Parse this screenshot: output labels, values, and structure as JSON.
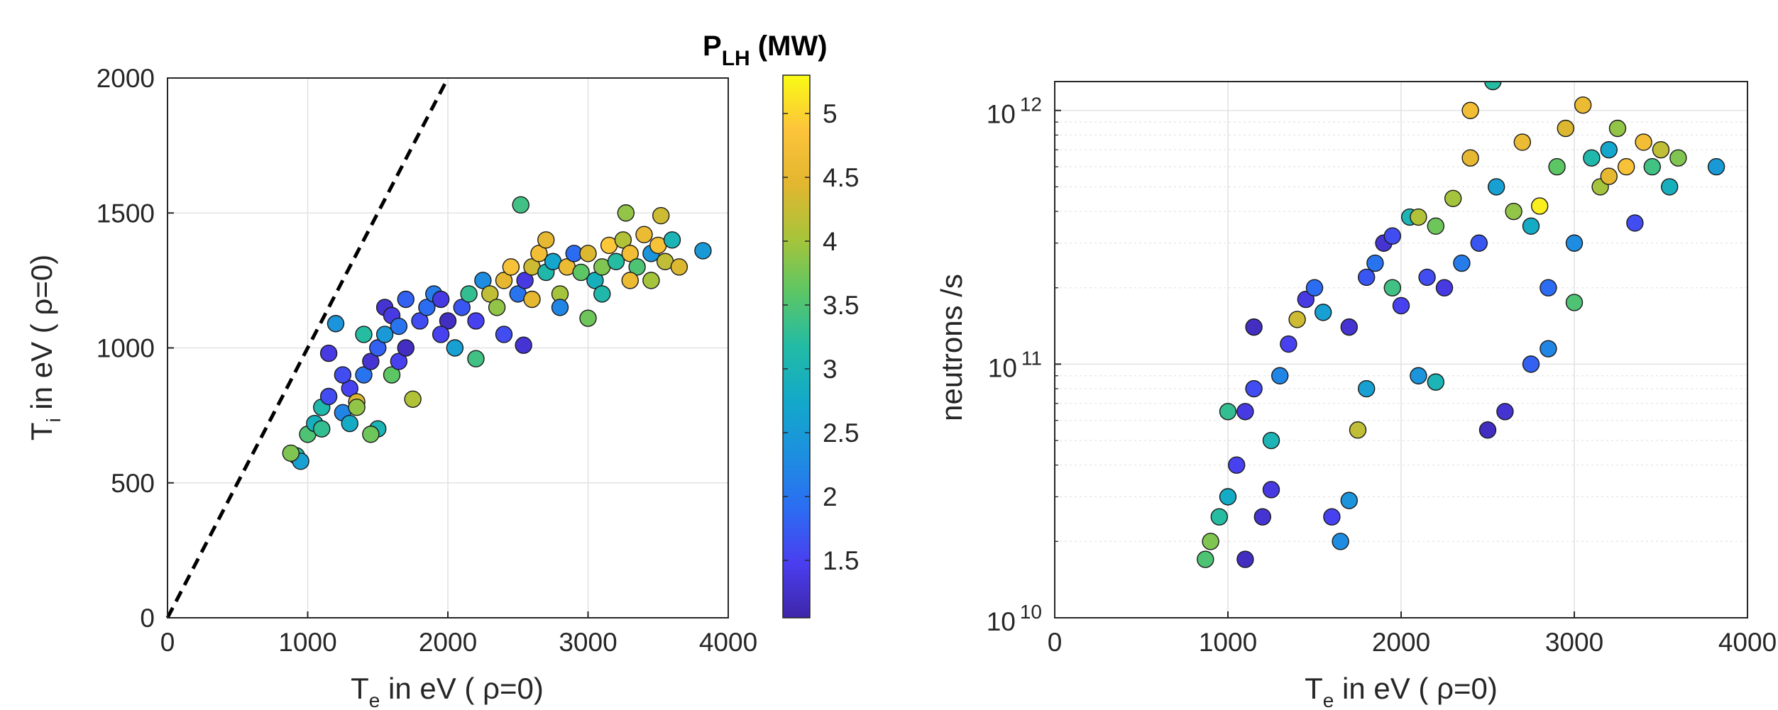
{
  "chart_data": [
    {
      "type": "scatter",
      "xlabel": {
        "main": "T",
        "sub": "e",
        "rest": " in eV (  ρ=0)"
      },
      "ylabel": {
        "main": "T",
        "sub": "i",
        "rest": " in eV (  ρ=0)"
      },
      "xlim": [
        0,
        4000
      ],
      "ylim": [
        0,
        2000
      ],
      "x_ticks": [
        "0",
        "1000",
        "2000",
        "3000",
        "4000"
      ],
      "y_ticks": [
        "0",
        "500",
        "1000",
        "1500",
        "2000"
      ],
      "grid": true,
      "reference_line": {
        "style": "dashed",
        "color": "#000000",
        "from": [
          0,
          0
        ],
        "to": [
          2000,
          2000
        ]
      },
      "color_variable": "P_LH (MW)",
      "points": [
        [
          920,
          600,
          3.2
        ],
        [
          950,
          580,
          2.6
        ],
        [
          880,
          610,
          3.8
        ],
        [
          1000,
          680,
          3.5
        ],
        [
          1050,
          720,
          2.9
        ],
        [
          1100,
          780,
          3.1
        ],
        [
          1150,
          820,
          1.6
        ],
        [
          1200,
          1090,
          2.4
        ],
        [
          1150,
          980,
          1.4
        ],
        [
          1250,
          760,
          2.2
        ],
        [
          1300,
          850,
          1.5
        ],
        [
          1350,
          800,
          4.4
        ],
        [
          1400,
          900,
          2.0
        ],
        [
          1450,
          950,
          1.3
        ],
        [
          1500,
          1000,
          1.8
        ],
        [
          1550,
          1050,
          2.5
        ],
        [
          1600,
          900,
          3.6
        ],
        [
          1650,
          950,
          1.5
        ],
        [
          1700,
          1000,
          1.2
        ],
        [
          1750,
          810,
          4.1
        ],
        [
          1500,
          700,
          3.0
        ],
        [
          1450,
          680,
          3.7
        ],
        [
          1300,
          720,
          2.8
        ],
        [
          1550,
          1150,
          1.3
        ],
        [
          1800,
          1100,
          1.6
        ],
        [
          1850,
          1150,
          1.9
        ],
        [
          1900,
          1200,
          2.1
        ],
        [
          1950,
          1180,
          1.4
        ],
        [
          2000,
          1100,
          1.2
        ],
        [
          2050,
          1000,
          2.6
        ],
        [
          2100,
          1150,
          1.7
        ],
        [
          2150,
          1200,
          3.3
        ],
        [
          2200,
          1100,
          1.5
        ],
        [
          2250,
          1250,
          2.3
        ],
        [
          2300,
          1200,
          4.2
        ],
        [
          2350,
          1150,
          3.9
        ],
        [
          2400,
          1250,
          4.5
        ],
        [
          2450,
          1300,
          4.8
        ],
        [
          2500,
          1200,
          2.0
        ],
        [
          2520,
          1530,
          3.4
        ],
        [
          2550,
          1250,
          1.4
        ],
        [
          2600,
          1300,
          4.3
        ],
        [
          2650,
          1350,
          4.7
        ],
        [
          2700,
          1280,
          3.1
        ],
        [
          2750,
          1320,
          2.7
        ],
        [
          2800,
          1200,
          4.0
        ],
        [
          2850,
          1300,
          4.6
        ],
        [
          2900,
          1350,
          1.9
        ],
        [
          2950,
          1280,
          3.6
        ],
        [
          3000,
          1350,
          4.4
        ],
        [
          3050,
          1250,
          2.9
        ],
        [
          3100,
          1300,
          3.8
        ],
        [
          3150,
          1380,
          4.9
        ],
        [
          3200,
          1320,
          3.2
        ],
        [
          3250,
          1400,
          4.1
        ],
        [
          3300,
          1350,
          4.7
        ],
        [
          3350,
          1300,
          3.5
        ],
        [
          3400,
          1420,
          4.6
        ],
        [
          3450,
          1350,
          2.4
        ],
        [
          3500,
          1380,
          4.8
        ],
        [
          3550,
          1320,
          4.2
        ],
        [
          3600,
          1400,
          3.0
        ],
        [
          3650,
          1300,
          4.4
        ],
        [
          3820,
          1360,
          2.5
        ],
        [
          3270,
          1500,
          3.9
        ],
        [
          3520,
          1490,
          4.3
        ],
        [
          2540,
          1010,
          1.3
        ],
        [
          3000,
          1110,
          3.7
        ],
        [
          2800,
          1150,
          2.2
        ],
        [
          2600,
          1180,
          4.5
        ],
        [
          2400,
          1050,
          1.6
        ],
        [
          2200,
          960,
          3.4
        ],
        [
          1700,
          1180,
          1.8
        ],
        [
          1400,
          1050,
          3.2
        ],
        [
          1600,
          1120,
          1.4
        ],
        [
          1250,
          900,
          1.6
        ],
        [
          1100,
          700,
          3.3
        ],
        [
          1350,
          780,
          3.9
        ],
        [
          1650,
          1080,
          2.0
        ],
        [
          1950,
          1050,
          1.5
        ],
        [
          3100,
          1200,
          3.1
        ],
        [
          3300,
          1250,
          4.6
        ],
        [
          3450,
          1250,
          4.0
        ],
        [
          2700,
          1400,
          4.5
        ]
      ]
    },
    {
      "type": "scatter",
      "xlabel": {
        "main": "T",
        "sub": "e",
        "rest": " in eV (  ρ=0)"
      },
      "ylabel": "neutrons /s",
      "xlim": [
        0,
        4000
      ],
      "ylim": [
        10000000000.0,
        1300000000000.0
      ],
      "y_scale": "log",
      "x_ticks": [
        "0",
        "1000",
        "2000",
        "3000",
        "4000"
      ],
      "y_ticks": [
        {
          "base": "10",
          "exp": "10",
          "value": 10000000000.0
        },
        {
          "base": "10",
          "exp": "11",
          "value": 100000000000.0
        },
        {
          "base": "10",
          "exp": "12",
          "value": 1000000000000.0
        }
      ],
      "grid": true,
      "color_variable": "P_LH (MW)",
      "points": [
        [
          870,
          17000000000.0,
          3.5
        ],
        [
          900,
          20000000000.0,
          3.8
        ],
        [
          950,
          25000000000.0,
          3.2
        ],
        [
          1000,
          30000000000.0,
          2.8
        ],
        [
          1050,
          40000000000.0,
          1.5
        ],
        [
          1100,
          17000000000.0,
          1.2
        ],
        [
          1100,
          65000000000.0,
          1.4
        ],
        [
          1150,
          80000000000.0,
          1.6
        ],
        [
          1200,
          25000000000.0,
          1.3
        ],
        [
          1250,
          50000000000.0,
          3.0
        ],
        [
          1300,
          90000000000.0,
          2.2
        ],
        [
          1350,
          120000000000.0,
          1.5
        ],
        [
          1400,
          150000000000.0,
          4.3
        ],
        [
          1450,
          180000000000.0,
          1.4
        ],
        [
          1500,
          200000000000.0,
          1.9
        ],
        [
          1550,
          160000000000.0,
          2.6
        ],
        [
          1600,
          25000000000.0,
          1.5
        ],
        [
          1650,
          20000000000.0,
          2.3
        ],
        [
          1700,
          140000000000.0,
          1.3
        ],
        [
          1750,
          55000000000.0,
          4.2
        ],
        [
          1800,
          220000000000.0,
          1.7
        ],
        [
          1850,
          250000000000.0,
          2.0
        ],
        [
          1900,
          300000000000.0,
          1.3
        ],
        [
          1950,
          200000000000.0,
          3.4
        ],
        [
          2000,
          170000000000.0,
          1.5
        ],
        [
          2050,
          380000000000.0,
          3.0
        ],
        [
          2100,
          90000000000.0,
          2.4
        ],
        [
          2150,
          220000000000.0,
          1.6
        ],
        [
          2200,
          350000000000.0,
          3.7
        ],
        [
          2250,
          200000000000.0,
          1.4
        ],
        [
          2300,
          450000000000.0,
          4.0
        ],
        [
          2350,
          250000000000.0,
          2.1
        ],
        [
          2400,
          650000000000.0,
          4.5
        ],
        [
          2400,
          1000000000000.0,
          4.7
        ],
        [
          2450,
          300000000000.0,
          1.7
        ],
        [
          2500,
          55000000000.0,
          1.2
        ],
        [
          2530,
          1300000000000.0,
          3.2
        ],
        [
          2550,
          500000000000.0,
          2.6
        ],
        [
          2600,
          65000000000.0,
          1.3
        ],
        [
          2650,
          400000000000.0,
          3.9
        ],
        [
          2700,
          750000000000.0,
          4.6
        ],
        [
          2750,
          350000000000.0,
          2.8
        ],
        [
          2800,
          420000000000.0,
          5.2
        ],
        [
          2850,
          200000000000.0,
          1.9
        ],
        [
          2900,
          600000000000.0,
          3.6
        ],
        [
          2950,
          850000000000.0,
          4.4
        ],
        [
          3000,
          300000000000.0,
          2.3
        ],
        [
          3050,
          1050000000000.0,
          4.6
        ],
        [
          3100,
          650000000000.0,
          3.1
        ],
        [
          3150,
          500000000000.0,
          4.0
        ],
        [
          3200,
          700000000000.0,
          2.7
        ],
        [
          3250,
          850000000000.0,
          3.9
        ],
        [
          3300,
          600000000000.0,
          4.8
        ],
        [
          3350,
          360000000000.0,
          1.6
        ],
        [
          3400,
          750000000000.0,
          4.7
        ],
        [
          3450,
          600000000000.0,
          3.4
        ],
        [
          3500,
          700000000000.0,
          4.2
        ],
        [
          3550,
          500000000000.0,
          2.9
        ],
        [
          3600,
          650000000000.0,
          3.8
        ],
        [
          3820,
          600000000000.0,
          2.5
        ],
        [
          2750,
          100000000000.0,
          1.8
        ],
        [
          2850,
          115000000000.0,
          2.2
        ],
        [
          3000,
          175000000000.0,
          3.5
        ],
        [
          1800,
          80000000000.0,
          2.6
        ],
        [
          1700,
          29000000000.0,
          2.4
        ],
        [
          1250,
          32000000000.0,
          1.4
        ],
        [
          1000,
          65000000000.0,
          3.3
        ],
        [
          1150,
          140000000000.0,
          1.2
        ],
        [
          2200,
          85000000000.0,
          3.0
        ],
        [
          2100,
          380000000000.0,
          4.1
        ],
        [
          1950,
          320000000000.0,
          1.6
        ],
        [
          3200,
          550000000000.0,
          4.5
        ]
      ]
    }
  ],
  "colorbar": {
    "title_main": "P",
    "title_sub": "LH",
    "title_rest": " (MW)",
    "range": [
      1.05,
      5.3
    ],
    "ticks": [
      "1.5",
      "2",
      "2.5",
      "3",
      "3.5",
      "4",
      "4.5",
      "5"
    ],
    "tick_values": [
      1.5,
      2,
      2.5,
      3,
      3.5,
      4,
      4.5,
      5
    ],
    "colormap": [
      "#3e26a8",
      "#4a3ef0",
      "#2c6cf2",
      "#1d8fe0",
      "#13a9c9",
      "#22bba5",
      "#5cc665",
      "#a8c43a",
      "#e3b630",
      "#fcc43a",
      "#f9fb15"
    ]
  }
}
